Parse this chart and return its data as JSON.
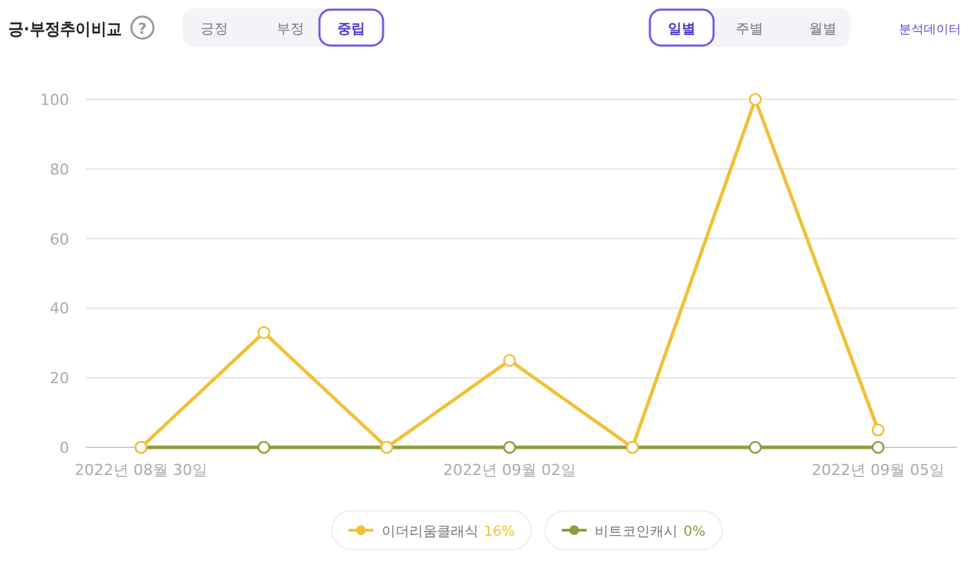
{
  "chart_data": {
    "type": "line",
    "title": "긍·부정추이비교",
    "annotations": [
      "?",
      "긍정",
      "부정",
      "중립",
      "일별",
      "주별",
      "월별",
      "분석데이터"
    ],
    "categories": [
      "2022년 08월 30일",
      null,
      null,
      "2022년 09월 02일",
      null,
      null,
      "2022년 09월 05일"
    ],
    "series": [
      {
        "name": "이더리움클래식 16%",
        "color": "#f2c037",
        "values": [
          0,
          33,
          0,
          25,
          0,
          100,
          5
        ]
      },
      {
        "name": "비트코인캐시 0%",
        "color": "#8a9e3a",
        "values": [
          0,
          0,
          0,
          0,
          0,
          0,
          0
        ]
      }
    ],
    "ylim": [
      0,
      100
    ],
    "yticks": [
      0,
      20,
      40,
      60,
      80,
      100
    ],
    "grid": "y",
    "legend": "bottom",
    "marker": "circle",
    "line_style": "solid"
  }
}
